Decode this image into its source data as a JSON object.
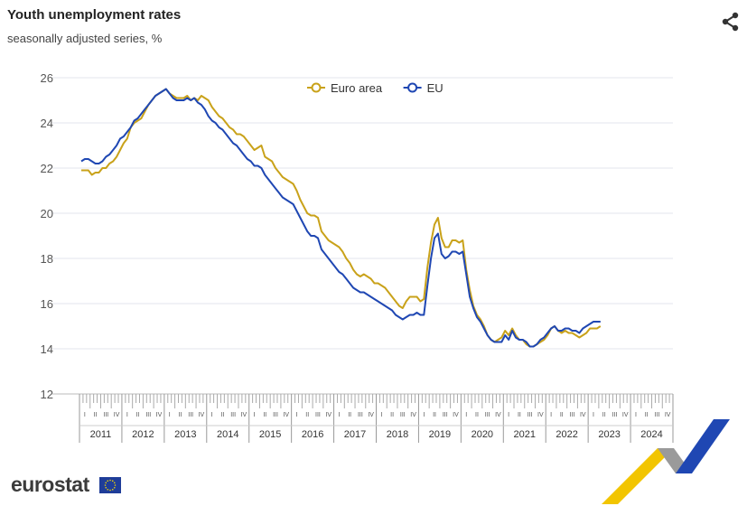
{
  "header": {
    "title": "Youth unemployment rates",
    "subtitle": "seasonally adjusted series, %",
    "share_icon": "share-icon"
  },
  "footer": {
    "brand": "eurostat",
    "flag_icon": "eu-flag-icon"
  },
  "chart_data": {
    "type": "line",
    "title": "Youth unemployment rates",
    "subtitle": "seasonally adjusted series, %",
    "xlabel": "",
    "ylabel": "",
    "ylim": [
      12,
      26
    ],
    "yticks": [
      12,
      14,
      16,
      18,
      20,
      22,
      24,
      26
    ],
    "grid": true,
    "legend_position": "top-center",
    "x_start": "2011-01",
    "x_frequency": "monthly",
    "years": [
      "2011",
      "2012",
      "2013",
      "2014",
      "2015",
      "2016",
      "2017",
      "2018",
      "2019",
      "2020",
      "2021",
      "2022",
      "2023",
      "2024"
    ],
    "quarters": [
      "I",
      "II",
      "III",
      "IV"
    ],
    "colors": {
      "Euro area": "#c9a21a",
      "EU": "#1f47b3"
    },
    "series": [
      {
        "name": "Euro area",
        "values": [
          21.9,
          21.9,
          21.9,
          21.7,
          21.8,
          21.8,
          22.0,
          22.0,
          22.2,
          22.3,
          22.5,
          22.8,
          23.1,
          23.3,
          23.8,
          24.0,
          24.1,
          24.2,
          24.5,
          24.8,
          25.0,
          25.2,
          25.3,
          25.4,
          25.5,
          25.3,
          25.2,
          25.1,
          25.1,
          25.1,
          25.2,
          25.0,
          25.1,
          25.0,
          25.2,
          25.1,
          25.0,
          24.7,
          24.5,
          24.3,
          24.2,
          24.0,
          23.8,
          23.7,
          23.5,
          23.5,
          23.4,
          23.2,
          23.0,
          22.8,
          22.9,
          23.0,
          22.5,
          22.4,
          22.3,
          22.0,
          21.8,
          21.6,
          21.5,
          21.4,
          21.3,
          21.0,
          20.6,
          20.3,
          20.0,
          19.9,
          19.9,
          19.8,
          19.2,
          19.0,
          18.8,
          18.7,
          18.6,
          18.5,
          18.3,
          18.0,
          17.8,
          17.5,
          17.3,
          17.2,
          17.3,
          17.2,
          17.1,
          16.9,
          16.9,
          16.8,
          16.7,
          16.5,
          16.3,
          16.1,
          15.9,
          15.8,
          16.1,
          16.3,
          16.3,
          16.3,
          16.1,
          16.2,
          17.6,
          18.7,
          19.5,
          19.8,
          18.9,
          18.5,
          18.5,
          18.8,
          18.8,
          18.7,
          18.8,
          17.5,
          16.6,
          15.9,
          15.5,
          15.3,
          15.0,
          14.6,
          14.4,
          14.3,
          14.4,
          14.5,
          14.8,
          14.6,
          14.9,
          14.6,
          14.4,
          14.4,
          14.2,
          14.1,
          14.1,
          14.2,
          14.3,
          14.4,
          14.6,
          14.9,
          15.0,
          14.8,
          14.7,
          14.8,
          14.7,
          14.7,
          14.6,
          14.5,
          14.6,
          14.7,
          14.9,
          14.9,
          14.9,
          15.0
        ]
      },
      {
        "name": "EU",
        "values": [
          22.3,
          22.4,
          22.4,
          22.3,
          22.2,
          22.2,
          22.3,
          22.5,
          22.6,
          22.8,
          23.0,
          23.3,
          23.4,
          23.6,
          23.8,
          24.1,
          24.2,
          24.4,
          24.6,
          24.8,
          25.0,
          25.2,
          25.3,
          25.4,
          25.5,
          25.3,
          25.1,
          25.0,
          25.0,
          25.0,
          25.1,
          25.0,
          25.1,
          24.9,
          24.8,
          24.6,
          24.3,
          24.1,
          24.0,
          23.8,
          23.7,
          23.5,
          23.3,
          23.1,
          23.0,
          22.8,
          22.6,
          22.4,
          22.3,
          22.1,
          22.1,
          22.0,
          21.7,
          21.5,
          21.3,
          21.1,
          20.9,
          20.7,
          20.6,
          20.5,
          20.4,
          20.1,
          19.8,
          19.5,
          19.2,
          19.0,
          19.0,
          18.9,
          18.4,
          18.2,
          18.0,
          17.8,
          17.6,
          17.4,
          17.3,
          17.1,
          16.9,
          16.7,
          16.6,
          16.5,
          16.5,
          16.4,
          16.3,
          16.2,
          16.1,
          16.0,
          15.9,
          15.8,
          15.7,
          15.5,
          15.4,
          15.3,
          15.4,
          15.5,
          15.5,
          15.6,
          15.5,
          15.5,
          16.8,
          18.0,
          18.9,
          19.1,
          18.2,
          18.0,
          18.1,
          18.3,
          18.3,
          18.2,
          18.3,
          17.3,
          16.3,
          15.8,
          15.4,
          15.2,
          14.9,
          14.6,
          14.4,
          14.3,
          14.3,
          14.3,
          14.6,
          14.4,
          14.8,
          14.5,
          14.4,
          14.4,
          14.3,
          14.1,
          14.1,
          14.2,
          14.4,
          14.5,
          14.7,
          14.9,
          15.0,
          14.8,
          14.8,
          14.9,
          14.9,
          14.8,
          14.8,
          14.7,
          14.9,
          15.0,
          15.1,
          15.2,
          15.2,
          15.2
        ]
      }
    ]
  }
}
